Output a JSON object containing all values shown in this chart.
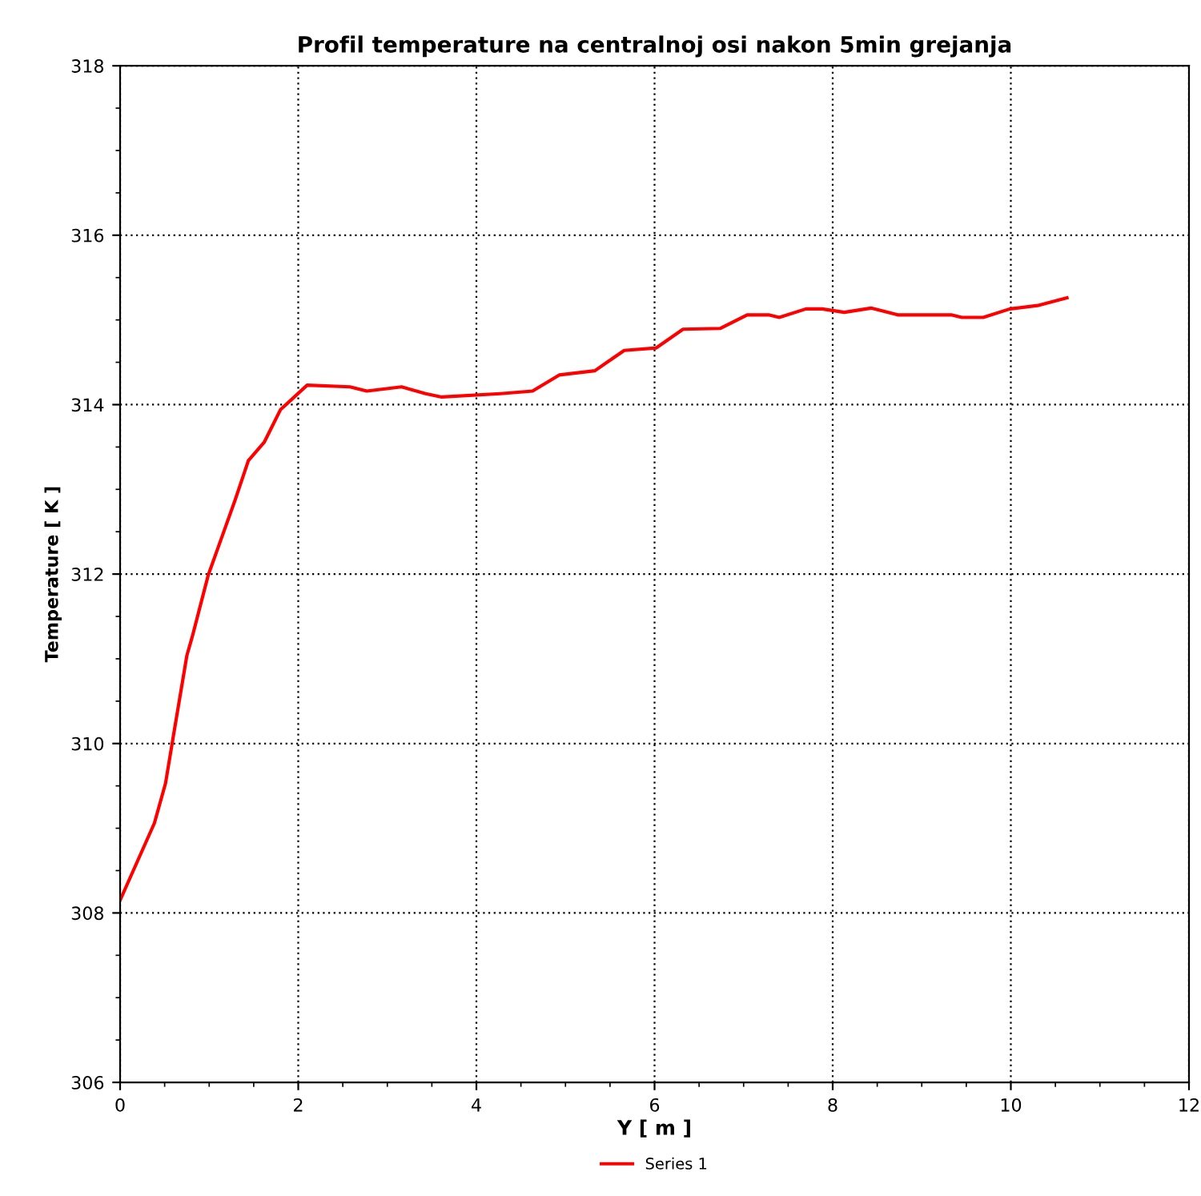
{
  "chart_data": {
    "type": "line",
    "title": "Profil temperature na centralnoj osi nakon 5min grejanja",
    "xlabel": "Y [ m ]",
    "ylabel": "Temperature [ K ]",
    "xlim": [
      0,
      12
    ],
    "xticks": [
      0,
      2,
      4,
      6,
      8,
      10,
      12
    ],
    "ylim": [
      306,
      318
    ],
    "yticks": [
      306,
      308,
      310,
      312,
      314,
      316,
      318
    ],
    "grid": true,
    "legend": "bottom",
    "marker": "none",
    "line_style": "solid",
    "series": [
      {
        "name": "Series 1",
        "color": "#ff0000",
        "x": [
          0,
          0.385,
          0.51,
          0.6,
          0.75,
          0.81,
          0.99,
          1.14,
          1.29,
          1.44,
          1.62,
          1.8,
          2.1,
          2.58,
          2.77,
          3.16,
          3.43,
          3.61,
          4.27,
          4.63,
          4.93,
          5.33,
          5.48,
          5.66,
          6.02,
          6.32,
          6.74,
          7.04,
          7.28,
          7.4,
          7.7,
          7.88,
          8.13,
          8.43,
          8.73,
          9.33,
          9.45,
          9.69,
          9.99,
          10.3,
          10.63
        ],
        "values": [
          308.15,
          309.06,
          309.53,
          310.1,
          311.04,
          311.26,
          311.99,
          312.43,
          312.87,
          313.34,
          313.56,
          313.94,
          314.23,
          314.21,
          314.16,
          314.21,
          314.13,
          314.09,
          314.13,
          314.16,
          314.35,
          314.4,
          314.51,
          314.64,
          314.67,
          314.89,
          314.9,
          315.06,
          315.06,
          315.03,
          315.13,
          315.13,
          315.09,
          315.14,
          315.06,
          315.06,
          315.03,
          315.03,
          315.13,
          315.17,
          315.26
        ]
      }
    ]
  }
}
